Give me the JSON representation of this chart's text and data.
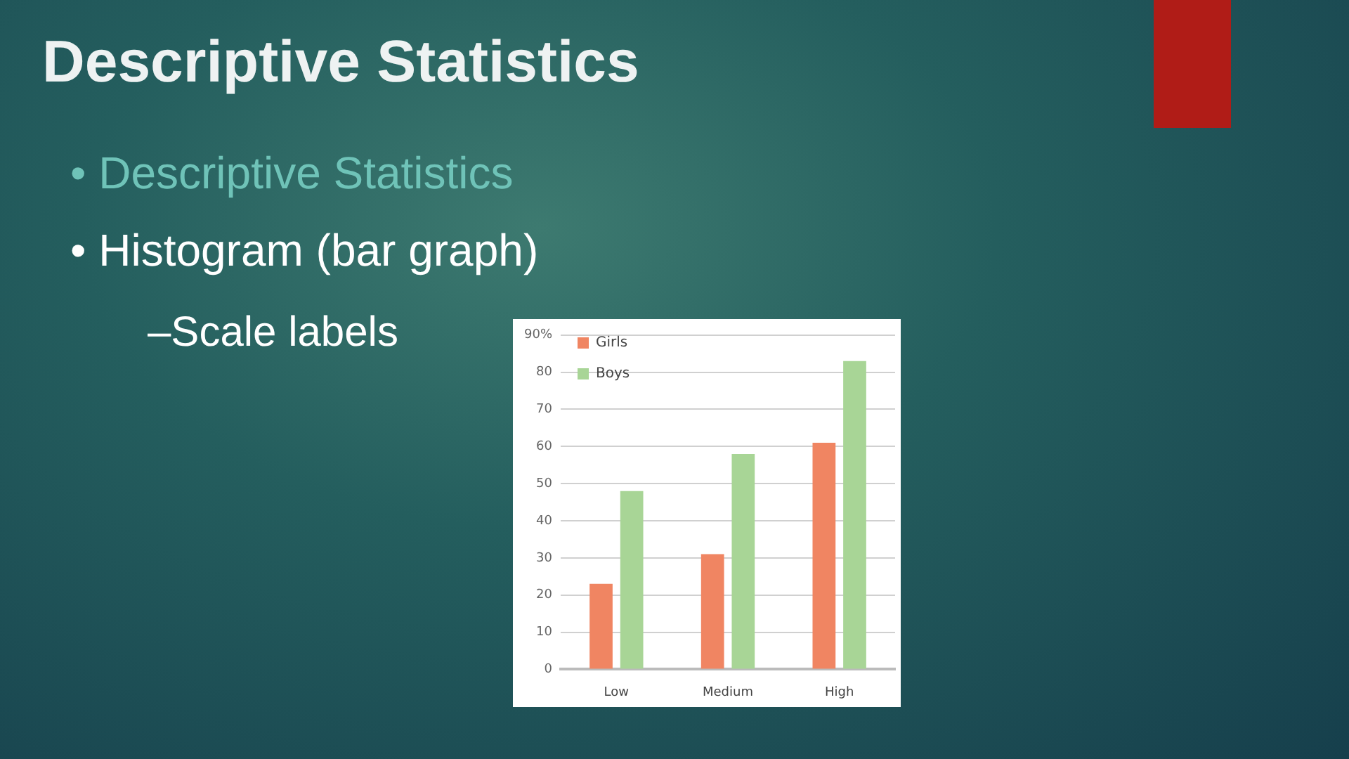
{
  "chart_data": {
    "type": "bar",
    "title": "Descriptive Statistics",
    "annotations": [
      "• Descriptive Statistics",
      "• Histogram (bar graph)",
      "–Scale labels"
    ],
    "categories": [
      "Low",
      "Medium",
      "High"
    ],
    "series": [
      {
        "name": "Girls",
        "color": "#f08562",
        "values": [
          23,
          31,
          61
        ]
      },
      {
        "name": "Boys",
        "color": "#a8d596",
        "values": [
          48,
          58,
          83
        ]
      }
    ],
    "ylim": [
      0,
      90
    ],
    "yticks": [
      0,
      10,
      20,
      30,
      40,
      50,
      60,
      70,
      80,
      {
        "value": 90,
        "label": "90%"
      }
    ],
    "grid": "y",
    "legend": "top left"
  }
}
